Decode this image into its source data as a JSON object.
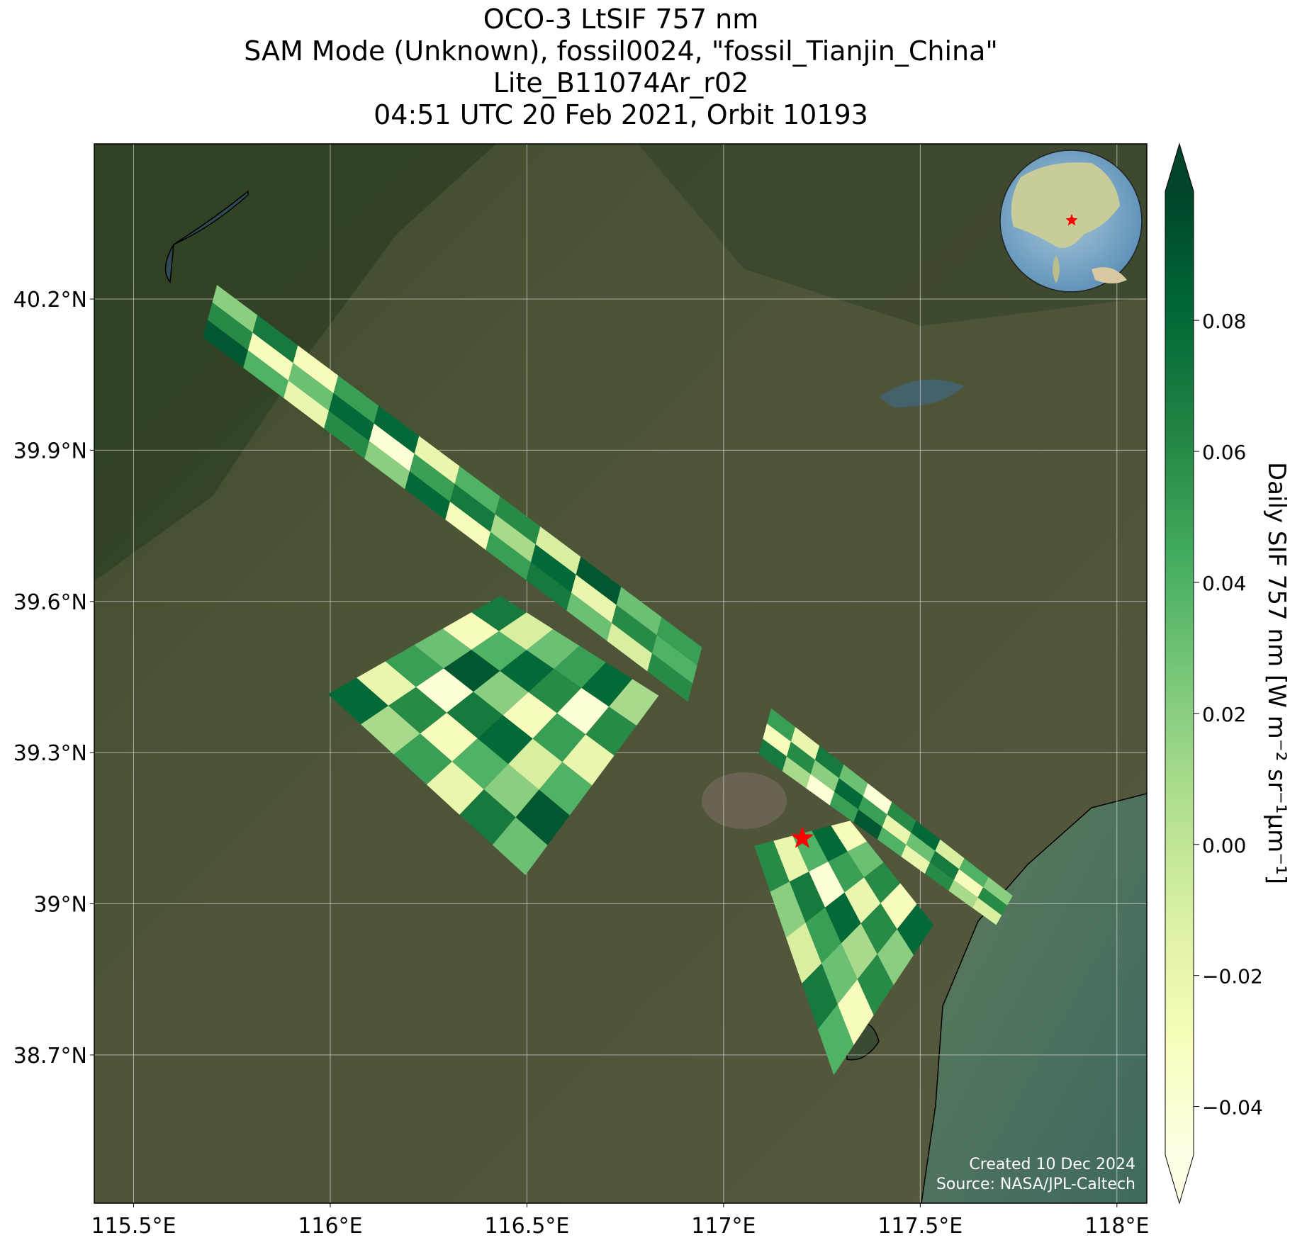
{
  "chart_data": {
    "type": "map",
    "title": [
      "OCO-3 LtSIF 757 nm",
      "SAM Mode (Unknown), fossil0024, \"fossil_Tianjin_China\"",
      "Lite_B11074Ar_r02",
      "04:51 UTC 20 Feb 2021, Orbit 10193"
    ],
    "xlim": [
      115.4,
      118.076
    ],
    "ylim": [
      38.406,
      40.508
    ],
    "xticks": [
      {
        "value": 115.5,
        "label": "115.5°E"
      },
      {
        "value": 116,
        "label": "116°E"
      },
      {
        "value": 116.5,
        "label": "116.5°E"
      },
      {
        "value": 117,
        "label": "117°E"
      },
      {
        "value": 117.5,
        "label": "117.5°E"
      },
      {
        "value": 118,
        "label": "118°E"
      }
    ],
    "yticks": [
      {
        "value": 38.7,
        "label": "38.7°N"
      },
      {
        "value": 39,
        "label": "39°N"
      },
      {
        "value": 39.3,
        "label": "39.3°N"
      },
      {
        "value": 39.6,
        "label": "39.6°N"
      },
      {
        "value": 39.9,
        "label": "39.9°N"
      },
      {
        "value": 40.2,
        "label": "40.2°N"
      }
    ],
    "grid": true,
    "colorbar": {
      "label": "Daily SIF 757 nm [W m⁻² sr⁻¹μm⁻¹]",
      "lim": [
        -0.0474,
        0.0997
      ],
      "ticks": [
        {
          "value": -0.04,
          "label": "−0.04"
        },
        {
          "value": -0.02,
          "label": "−0.02"
        },
        {
          "value": 0,
          "label": "0.00"
        },
        0.02,
        0.04,
        0.06,
        0.08
      ],
      "colormap": [
        "#ffffe5",
        "#f7fcb9",
        "#d9f0a3",
        "#addd8e",
        "#78c679",
        "#41ab5d",
        "#238443",
        "#006837",
        "#004529"
      ]
    },
    "target": {
      "lon": 117.2,
      "lat": 39.13,
      "color": "#ff0000"
    },
    "swaths": [
      {
        "corners": [
          [
            115.712,
            40.228
          ],
          [
            116.945,
            39.509
          ],
          [
            116.909,
            39.401
          ],
          [
            115.676,
            40.124
          ]
        ],
        "values": [
          [
            0.02,
            0.07,
            -0.03,
            0.05,
            0.08,
            -0.02,
            0.04,
            0.06,
            -0.01,
            0.09,
            0.03,
            0.05
          ],
          [
            0.06,
            -0.03,
            0.03,
            0.08,
            -0.04,
            0.05,
            0.07,
            0.01,
            0.08,
            -0.02,
            0.06,
            0.04
          ],
          [
            0.09,
            0.04,
            -0.02,
            0.06,
            0.02,
            0.08,
            -0.03,
            0.05,
            0.07,
            0.03,
            -0.01,
            0.06
          ]
        ]
      },
      {
        "corners": [
          [
            115.994,
            39.416
          ],
          [
            116.432,
            39.611
          ],
          [
            116.835,
            39.413
          ],
          [
            116.496,
            39.057
          ]
        ],
        "values": [
          [
            0.08,
            -0.02,
            0.05,
            0.03,
            -0.03,
            0.07
          ],
          [
            0.01,
            0.06,
            -0.04,
            0.09,
            0.04,
            -0.01
          ],
          [
            0.05,
            -0.03,
            0.07,
            0.02,
            0.08,
            0.03
          ],
          [
            -0.02,
            0.04,
            0.08,
            -0.03,
            0.06,
            0.05
          ],
          [
            0.07,
            0.02,
            -0.01,
            0.05,
            -0.04,
            0.08
          ],
          [
            0.03,
            0.09,
            0.04,
            -0.02,
            0.06,
            0.01
          ]
        ]
      },
      {
        "corners": [
          [
            117.121,
            39.388
          ],
          [
            117.735,
            39.016
          ],
          [
            117.693,
            38.958
          ],
          [
            117.089,
            39.297
          ]
        ],
        "values": [
          [
            0.05,
            -0.02,
            0.07,
            0.03,
            -0.04,
            0.06,
            0.08,
            -0.01,
            0.04,
            0.02
          ],
          [
            -0.03,
            0.06,
            0.02,
            0.08,
            0.05,
            -0.02,
            0.03,
            0.07,
            -0.03,
            0.06
          ],
          [
            0.07,
            0.01,
            -0.04,
            0.05,
            0.09,
            0.04,
            -0.02,
            0.06,
            0.01,
            -0.01
          ]
        ]
      },
      {
        "corners": [
          [
            117.078,
            39.115
          ],
          [
            117.322,
            39.165
          ],
          [
            117.534,
            38.958
          ],
          [
            117.28,
            38.66
          ]
        ],
        "values": [
          [
            0.06,
            -0.02,
            0.04,
            0.08,
            -0.03
          ],
          [
            0.02,
            0.07,
            -0.04,
            0.05,
            0.03
          ],
          [
            -0.01,
            0.05,
            0.08,
            -0.02,
            0.06
          ],
          [
            0.07,
            0.03,
            0.01,
            0.06,
            -0.03
          ],
          [
            0.04,
            -0.03,
            0.06,
            0.02,
            0.08
          ]
        ]
      }
    ],
    "annotations": [
      "Created 10 Dec 2024",
      "Source: NASA/JPL-Caltech"
    ]
  }
}
